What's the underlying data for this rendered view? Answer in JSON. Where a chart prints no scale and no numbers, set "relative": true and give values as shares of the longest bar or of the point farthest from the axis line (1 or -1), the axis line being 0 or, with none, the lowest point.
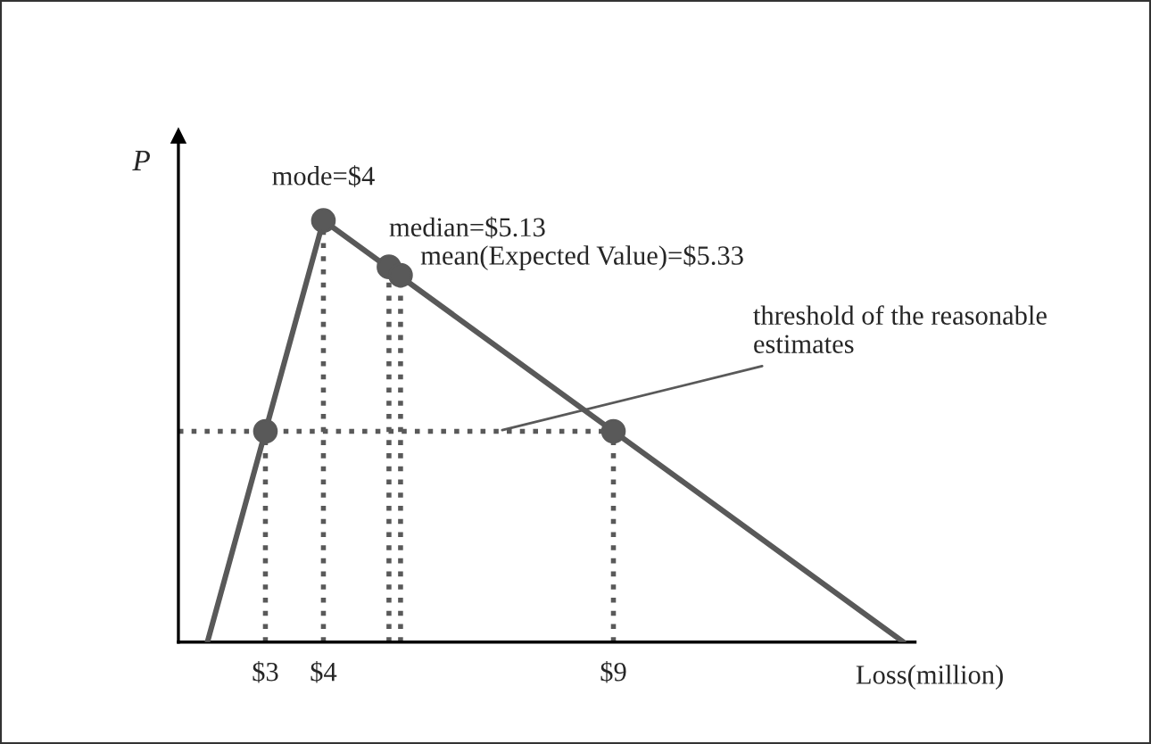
{
  "chart_data": {
    "type": "line",
    "relative": true,
    "xlabel": "Loss(million)",
    "ylabel": "P",
    "xlim": [
      1.5,
      14.2
    ],
    "xticks": [
      {
        "value": 3,
        "label": "$3"
      },
      {
        "value": 4,
        "label": "$4"
      },
      {
        "value": 9,
        "label": "$9"
      }
    ],
    "series": [
      {
        "type": "line",
        "color": "#595959",
        "x": [
          2,
          4,
          14
        ],
        "values": [
          0,
          1,
          0
        ],
        "line_style": "solid",
        "marker": "none"
      },
      {
        "type": "scatter",
        "color": "#595959",
        "x": [
          3,
          4,
          5.13,
          5.33,
          9
        ],
        "values": [
          0.5,
          1,
          0.89,
          0.87,
          0.5
        ],
        "marker": "circle"
      },
      {
        "type": "line",
        "color": "#595959",
        "x": [
          1.5,
          9
        ],
        "values": [
          0.5,
          0.5
        ],
        "line_style": "dotted"
      },
      {
        "type": "line",
        "color": "#595959",
        "x": [
          3,
          3
        ],
        "values": [
          0,
          0.5
        ],
        "line_style": "dotted"
      },
      {
        "type": "line",
        "color": "#595959",
        "x": [
          4,
          4
        ],
        "values": [
          0,
          1
        ],
        "line_style": "dotted"
      },
      {
        "type": "line",
        "color": "#595959",
        "x": [
          5.13,
          5.13
        ],
        "values": [
          0,
          0.89
        ],
        "line_style": "dotted"
      },
      {
        "type": "line",
        "color": "#595959",
        "x": [
          5.33,
          5.33
        ],
        "values": [
          0,
          0.87
        ],
        "line_style": "dotted"
      },
      {
        "type": "line",
        "color": "#595959",
        "x": [
          9,
          9
        ],
        "values": [
          0,
          0.5
        ],
        "line_style": "dotted"
      }
    ],
    "annotations": [
      {
        "text": "mode=$4",
        "x": 4,
        "y": 1
      },
      {
        "text": "median=$5.13",
        "x": 5.13,
        "y": 0.89
      },
      {
        "text": "mean(Expected Value)=$5.33",
        "x": 5.33,
        "y": 0.87
      },
      {
        "text": "threshold of the reasonable estimates",
        "x": 7,
        "y": 0.5
      }
    ],
    "grid": false,
    "legend": false
  }
}
